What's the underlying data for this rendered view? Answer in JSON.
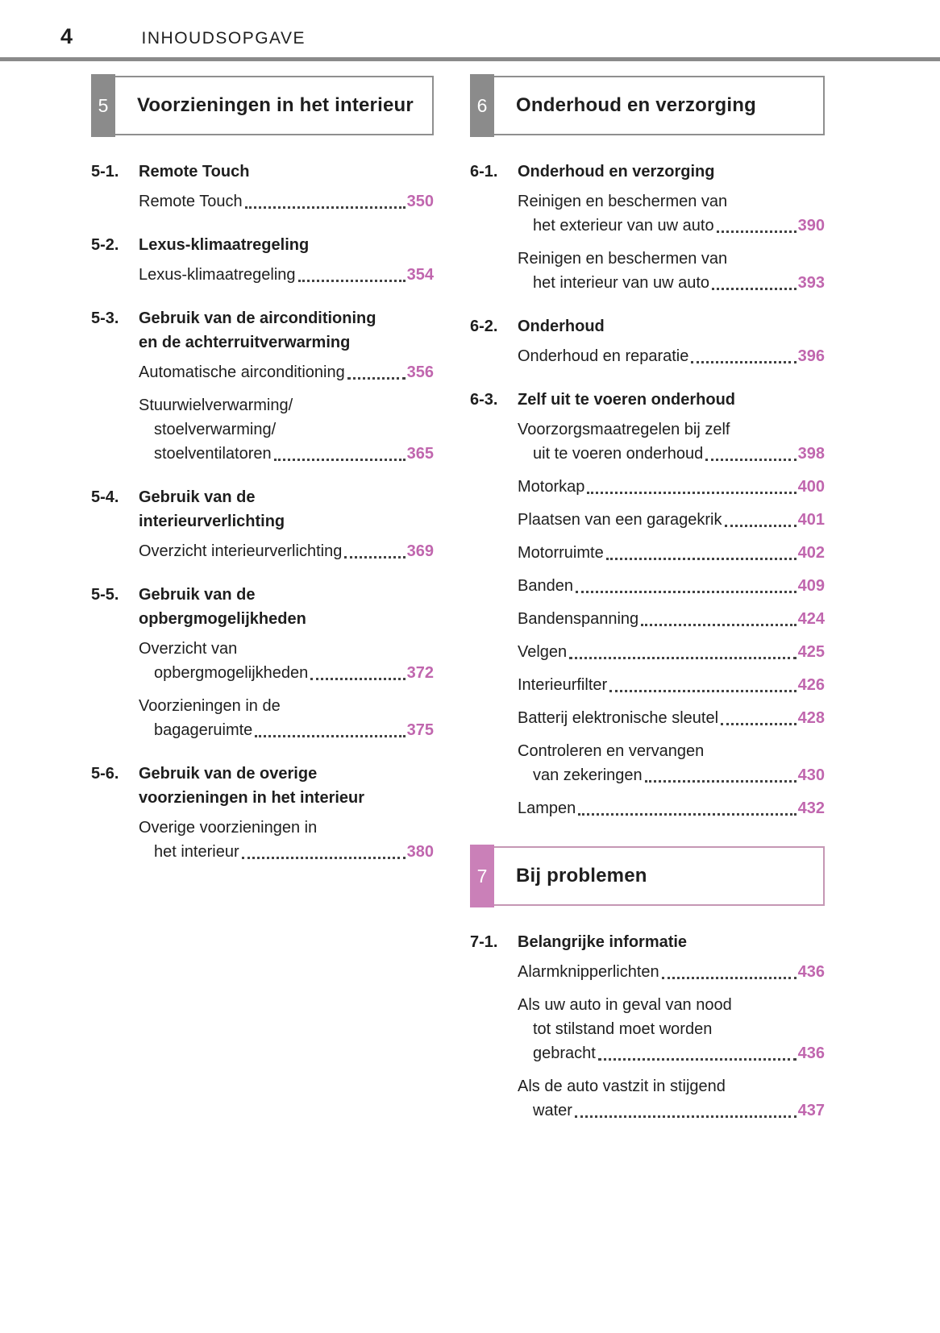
{
  "header": {
    "page_number": "4",
    "title": "INHOUDSOPGAVE"
  },
  "colors": {
    "accent_pink": "#c066ae",
    "tab_gray": "#8b8b8b",
    "tab_pink": "#ca80b8",
    "box_border_gray": "#8f8f8f",
    "box_border_pink": "#c597b4",
    "header_rule_gray": "#8a8a8a"
  },
  "columns": [
    {
      "sections": [
        {
          "tab_number": "5",
          "style": "gray",
          "title": "Voorzieningen in het interieur",
          "groups": [
            {
              "id": "5-1.",
              "heading_lines": [
                "Remote Touch"
              ],
              "entries": [
                {
                  "text_lines": [
                    "Remote Touch"
                  ],
                  "page": "350"
                }
              ]
            },
            {
              "id": "5-2.",
              "heading_lines": [
                "Lexus-klimaatregeling"
              ],
              "entries": [
                {
                  "text_lines": [
                    "Lexus-klimaatregeling"
                  ],
                  "page": "354"
                }
              ]
            },
            {
              "id": "5-3.",
              "heading_lines": [
                "Gebruik van de airconditioning",
                "en de achterruitverwarming"
              ],
              "entries": [
                {
                  "text_lines": [
                    "Automatische airconditioning"
                  ],
                  "page": "356"
                },
                {
                  "text_lines": [
                    "Stuurwielverwarming/",
                    "stoelverwarming/",
                    "stoelventilatoren"
                  ],
                  "page": "365"
                }
              ]
            },
            {
              "id": "5-4.",
              "heading_lines": [
                "Gebruik van de",
                "interieurverlichting"
              ],
              "entries": [
                {
                  "text_lines": [
                    "Overzicht interieurverlichting"
                  ],
                  "page": "369"
                }
              ]
            },
            {
              "id": "5-5.",
              "heading_lines": [
                "Gebruik van de",
                "opbergmogelijkheden"
              ],
              "entries": [
                {
                  "text_lines": [
                    "Overzicht van",
                    "opbergmogelijkheden"
                  ],
                  "page": "372"
                },
                {
                  "text_lines": [
                    "Voorzieningen in de",
                    "bagageruimte"
                  ],
                  "page": "375"
                }
              ]
            },
            {
              "id": "5-6.",
              "heading_lines": [
                "Gebruik van de overige",
                "voorzieningen in het interieur"
              ],
              "entries": [
                {
                  "text_lines": [
                    "Overige voorzieningen in",
                    "het interieur"
                  ],
                  "page": "380"
                }
              ]
            }
          ]
        }
      ]
    },
    {
      "sections": [
        {
          "tab_number": "6",
          "style": "gray",
          "title": "Onderhoud en verzorging",
          "groups": [
            {
              "id": "6-1.",
              "heading_lines": [
                "Onderhoud en verzorging"
              ],
              "entries": [
                {
                  "text_lines": [
                    "Reinigen en beschermen van",
                    "het exterieur van uw auto"
                  ],
                  "page": "390"
                },
                {
                  "text_lines": [
                    "Reinigen en beschermen van",
                    "het interieur van uw auto"
                  ],
                  "page": "393"
                }
              ]
            },
            {
              "id": "6-2.",
              "heading_lines": [
                "Onderhoud"
              ],
              "entries": [
                {
                  "text_lines": [
                    "Onderhoud en reparatie"
                  ],
                  "page": "396"
                }
              ]
            },
            {
              "id": "6-3.",
              "heading_lines": [
                "Zelf uit te voeren onderhoud"
              ],
              "entries": [
                {
                  "text_lines": [
                    "Voorzorgsmaatregelen bij zelf",
                    "uit te voeren onderhoud"
                  ],
                  "page": "398"
                },
                {
                  "text_lines": [
                    "Motorkap"
                  ],
                  "page": "400"
                },
                {
                  "text_lines": [
                    "Plaatsen van een garagekrik"
                  ],
                  "page": "401"
                },
                {
                  "text_lines": [
                    "Motorruimte"
                  ],
                  "page": "402"
                },
                {
                  "text_lines": [
                    "Banden"
                  ],
                  "page": "409"
                },
                {
                  "text_lines": [
                    "Bandenspanning"
                  ],
                  "page": "424"
                },
                {
                  "text_lines": [
                    "Velgen"
                  ],
                  "page": "425"
                },
                {
                  "text_lines": [
                    "Interieurfilter"
                  ],
                  "page": "426"
                },
                {
                  "text_lines": [
                    "Batterij elektronische sleutel"
                  ],
                  "page": "428"
                },
                {
                  "text_lines": [
                    "Controleren en vervangen",
                    "van zekeringen"
                  ],
                  "page": "430"
                },
                {
                  "text_lines": [
                    "Lampen"
                  ],
                  "page": "432"
                }
              ]
            }
          ]
        },
        {
          "tab_number": "7",
          "style": "pink",
          "title": "Bij problemen",
          "groups": [
            {
              "id": "7-1.",
              "heading_lines": [
                "Belangrijke informatie"
              ],
              "entries": [
                {
                  "text_lines": [
                    "Alarmknipperlichten"
                  ],
                  "page": "436"
                },
                {
                  "text_lines": [
                    "Als uw auto in geval van nood",
                    "tot stilstand moet worden",
                    "gebracht"
                  ],
                  "page": "436"
                },
                {
                  "text_lines": [
                    "Als de auto vastzit in stijgend",
                    "water"
                  ],
                  "page": "437"
                }
              ]
            }
          ]
        }
      ]
    }
  ]
}
